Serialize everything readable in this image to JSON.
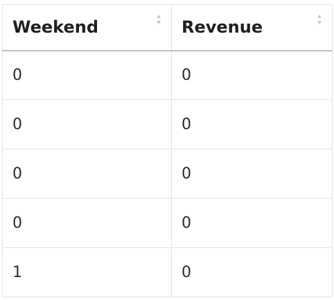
{
  "table": {
    "columns": [
      {
        "label": "Weekend",
        "sort_icon": "sort-arrows-icon"
      },
      {
        "label": "Revenue",
        "sort_icon": "sort-arrows-icon"
      }
    ],
    "rows": [
      [
        "0",
        "0"
      ],
      [
        "0",
        "0"
      ],
      [
        "0",
        "0"
      ],
      [
        "0",
        "0"
      ],
      [
        "1",
        "0"
      ]
    ]
  },
  "colors": {
    "grid_line": "#e4e4e4",
    "header_rule": "#bdbdbd",
    "sort_icon": "#c8c8c8"
  }
}
